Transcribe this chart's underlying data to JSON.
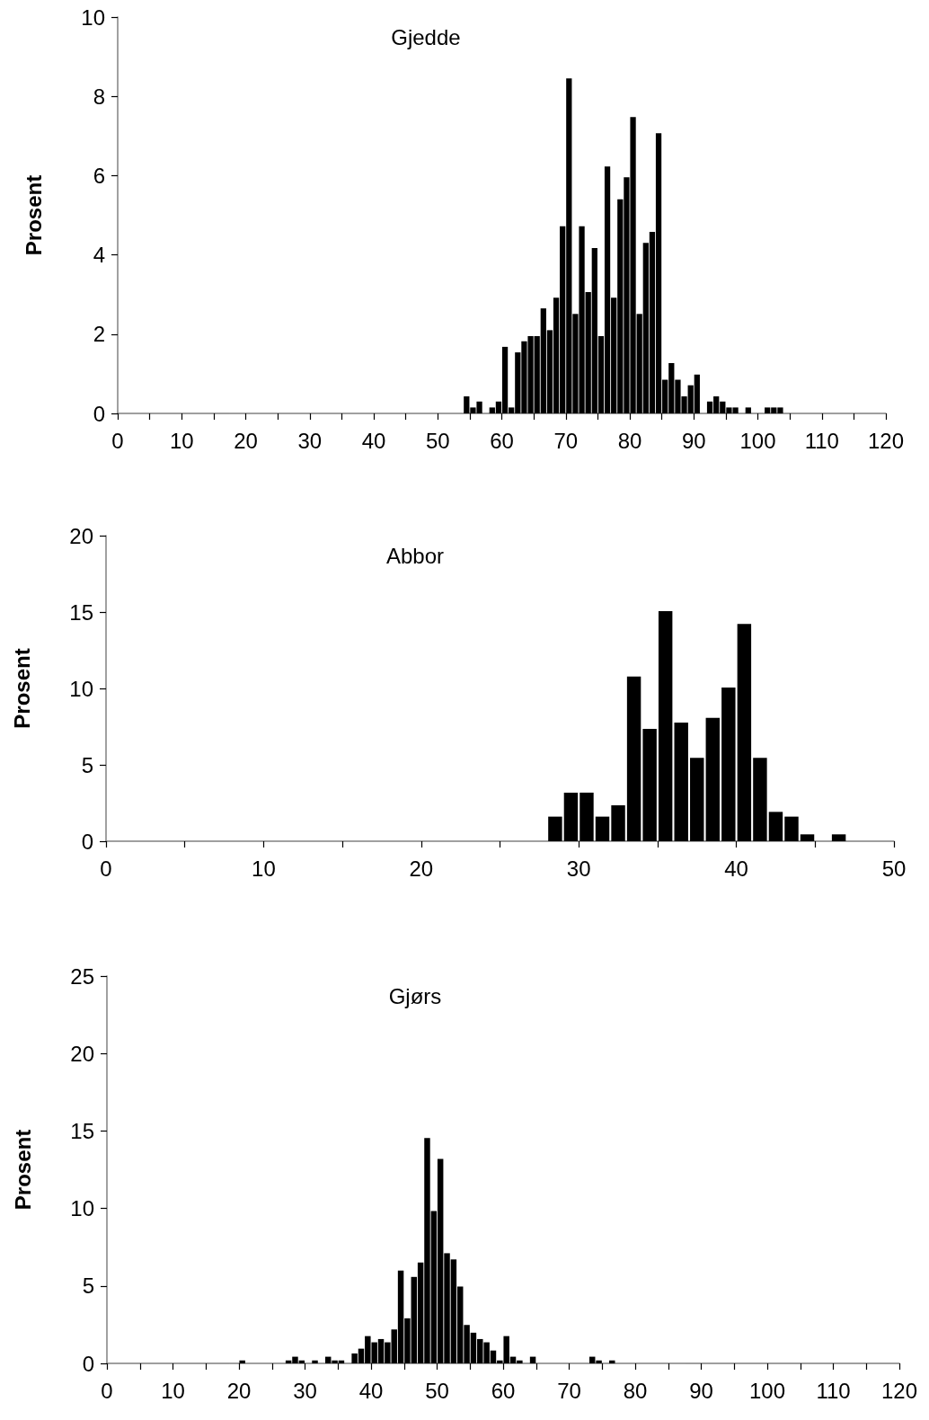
{
  "chart_data": [
    {
      "type": "histogram",
      "title": "Gjedde",
      "ylabel": "Prosent",
      "color": "#000000",
      "bins": [
        54,
        55,
        56,
        57,
        58,
        59,
        60,
        61,
        62,
        63,
        64,
        65,
        66,
        67,
        68,
        69,
        70,
        71,
        72,
        73,
        74,
        75,
        76,
        77,
        78,
        79,
        80,
        81,
        82,
        83,
        84,
        85,
        86,
        87,
        88,
        89,
        90,
        91,
        92,
        93,
        94,
        95,
        96,
        97,
        98,
        99,
        100,
        101,
        102,
        103,
        104
      ],
      "values": [
        0.43,
        0.15,
        0.3,
        0,
        0.15,
        0.3,
        1.68,
        0.15,
        1.54,
        1.82,
        1.95,
        1.95,
        2.65,
        2.1,
        2.92,
        4.72,
        8.45,
        2.51,
        4.72,
        3.06,
        4.17,
        1.95,
        6.23,
        2.92,
        5.4,
        5.96,
        7.48,
        2.51,
        4.3,
        4.58,
        7.07,
        0.85,
        1.27,
        0.85,
        0.43,
        0.71,
        0.98,
        0,
        0.3,
        0.43,
        0.3,
        0.15,
        0.15,
        0,
        0.15,
        0,
        0,
        0.15,
        0.15,
        0.15
      ],
      "xlim": [
        0,
        120
      ],
      "xticks": [
        0,
        {
          "value": 5,
          "label": null
        },
        10,
        {
          "value": 15,
          "label": null
        },
        20,
        {
          "value": 25,
          "label": null
        },
        30,
        {
          "value": 35,
          "label": null
        },
        40,
        {
          "value": 45,
          "label": null
        },
        50,
        {
          "value": 55,
          "label": null
        },
        60,
        {
          "value": 65,
          "label": null
        },
        70,
        {
          "value": 75,
          "label": null
        },
        80,
        {
          "value": 85,
          "label": null
        },
        90,
        {
          "value": 95,
          "label": null
        },
        100,
        {
          "value": 105,
          "label": null
        },
        110,
        {
          "value": 115,
          "label": null
        },
        120
      ],
      "ylim": [
        0,
        10
      ],
      "yticks": [
        0,
        2,
        4,
        6,
        8,
        10
      ]
    },
    {
      "type": "histogram",
      "title": "Abbor",
      "ylabel": "Prosent",
      "color": "#000000",
      "bins": [
        28,
        29,
        30,
        31,
        32,
        33,
        34,
        35,
        36,
        37,
        38,
        39,
        40,
        41,
        42,
        43,
        44,
        45,
        46,
        47
      ],
      "values": [
        1.61,
        3.18,
        3.18,
        1.61,
        2.35,
        10.78,
        7.35,
        15.06,
        7.76,
        5.45,
        8.08,
        10.06,
        14.22,
        5.45,
        1.92,
        1.61,
        0.45,
        0,
        0.45
      ],
      "xlim": [
        0,
        50
      ],
      "xticks": [
        0,
        {
          "value": 5,
          "label": null
        },
        10,
        {
          "value": 15,
          "label": null
        },
        20,
        {
          "value": 25,
          "label": null
        },
        30,
        {
          "value": 35,
          "label": null
        },
        40,
        {
          "value": 45,
          "label": null
        },
        50
      ],
      "ylim": [
        0,
        20
      ],
      "yticks": [
        0,
        5,
        10,
        15,
        20
      ]
    },
    {
      "type": "histogram",
      "title": "Gjørs",
      "ylabel": "Prosent",
      "color": "#000000",
      "bins": [
        20,
        21,
        22,
        23,
        24,
        25,
        26,
        27,
        28,
        29,
        30,
        31,
        32,
        33,
        34,
        35,
        36,
        37,
        38,
        39,
        40,
        41,
        42,
        43,
        44,
        45,
        46,
        47,
        48,
        49,
        50,
        51,
        52,
        53,
        54,
        55,
        56,
        57,
        58,
        59,
        60,
        61,
        62,
        63,
        64,
        65,
        66,
        67,
        68,
        69,
        70,
        71,
        72,
        73,
        74,
        75,
        76,
        77
      ],
      "values": [
        0.19,
        0,
        0,
        0,
        0,
        0,
        0,
        0.19,
        0.43,
        0.19,
        0,
        0.19,
        0,
        0.43,
        0.19,
        0.19,
        0,
        0.64,
        0.95,
        1.76,
        1.36,
        1.57,
        1.36,
        2.19,
        5.99,
        2.91,
        5.58,
        6.51,
        14.55,
        9.83,
        13.2,
        7.11,
        6.71,
        4.96,
        2.48,
        1.98,
        1.57,
        1.36,
        0.83,
        0.19,
        1.76,
        0.43,
        0.19,
        0,
        0.43,
        0,
        0,
        0,
        0,
        0,
        0,
        0,
        0,
        0.43,
        0.19,
        0,
        0.19
      ],
      "xlim": [
        0,
        120
      ],
      "xticks": [
        0,
        {
          "value": 5,
          "label": null
        },
        10,
        {
          "value": 15,
          "label": null
        },
        20,
        {
          "value": 25,
          "label": null
        },
        30,
        {
          "value": 35,
          "label": null
        },
        40,
        {
          "value": 45,
          "label": null
        },
        50,
        {
          "value": 55,
          "label": null
        },
        60,
        {
          "value": 65,
          "label": null
        },
        70,
        {
          "value": 75,
          "label": null
        },
        80,
        {
          "value": 85,
          "label": null
        },
        90,
        {
          "value": 95,
          "label": null
        },
        100,
        {
          "value": 105,
          "label": null
        },
        110,
        {
          "value": 115,
          "label": null
        },
        120
      ],
      "ylim": [
        0,
        25
      ],
      "yticks": [
        0,
        5,
        10,
        15,
        20,
        25
      ]
    }
  ]
}
